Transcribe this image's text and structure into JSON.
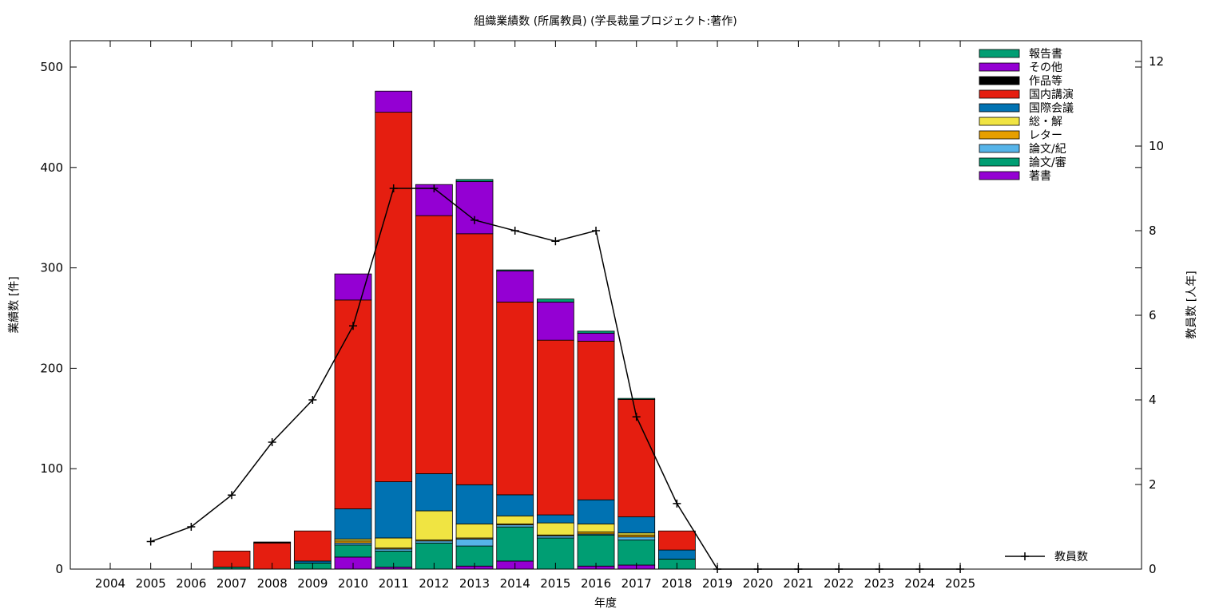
{
  "chart_data": {
    "type": "bar",
    "stacked": true,
    "title": "組織業績数 (所属教員) (学長裁量プロジェクト:著作)",
    "xlabel": "年度",
    "ylabel": "業績数 [件]",
    "y2label": "教員数 [人年]",
    "ylim": [
      0,
      525
    ],
    "y2lim": [
      0,
      12.5
    ],
    "yticks": [
      0,
      100,
      200,
      300,
      400,
      500
    ],
    "y2ticks": [
      0,
      2,
      4,
      6,
      8,
      10,
      12
    ],
    "grid": false,
    "legend_position": "top-right",
    "categories": [
      "2004",
      "2005",
      "2006",
      "2007",
      "2008",
      "2009",
      "2010",
      "2011",
      "2012",
      "2013",
      "2014",
      "2015",
      "2016",
      "2017",
      "2018",
      "2019",
      "2020",
      "2021",
      "2022",
      "2023",
      "2024",
      "2025"
    ],
    "series": [
      {
        "name": "著書",
        "color": "#9400d3",
        "values": [
          0,
          0,
          0,
          0,
          0,
          0,
          12,
          2,
          0,
          3,
          8,
          0,
          3,
          4,
          0,
          0,
          0,
          0,
          0,
          0,
          0,
          0
        ]
      },
      {
        "name": "論文/審",
        "color": "#009e73",
        "values": [
          0,
          0,
          0,
          2,
          0,
          6,
          12,
          16,
          26,
          20,
          34,
          31,
          31,
          25,
          10,
          0,
          0,
          0,
          0,
          0,
          0,
          0
        ]
      },
      {
        "name": "論文/紀",
        "color": "#56b4e9",
        "values": [
          0,
          0,
          0,
          0,
          0,
          0,
          2,
          2,
          2,
          7,
          2,
          2,
          1,
          3,
          0,
          0,
          0,
          0,
          0,
          0,
          0,
          0
        ]
      },
      {
        "name": "レター",
        "color": "#e69f00",
        "values": [
          0,
          0,
          0,
          0,
          0,
          0,
          2,
          1,
          1,
          1,
          1,
          1,
          2,
          2,
          0,
          0,
          0,
          0,
          0,
          0,
          0,
          0
        ]
      },
      {
        "name": "総・解",
        "color": "#f0e442",
        "values": [
          0,
          0,
          0,
          0,
          0,
          0,
          2,
          10,
          29,
          14,
          8,
          12,
          8,
          2,
          0,
          0,
          0,
          0,
          0,
          0,
          0,
          0
        ]
      },
      {
        "name": "国際会議",
        "color": "#0072b2",
        "values": [
          0,
          0,
          0,
          0,
          0,
          2,
          30,
          56,
          37,
          39,
          21,
          8,
          24,
          16,
          9,
          0,
          0,
          0,
          0,
          0,
          0,
          0
        ]
      },
      {
        "name": "国内講演",
        "color": "#e51e10",
        "values": [
          0,
          0,
          0,
          16,
          26,
          30,
          208,
          368,
          257,
          250,
          192,
          174,
          158,
          117,
          19,
          0,
          0,
          0,
          0,
          0,
          0,
          0
        ]
      },
      {
        "name": "作品等",
        "color": "#000000",
        "values": [
          0,
          0,
          0,
          0,
          1,
          0,
          0,
          0,
          0,
          0,
          0,
          0,
          0,
          0,
          0,
          0,
          0,
          0,
          0,
          0,
          0,
          0
        ]
      },
      {
        "name": "その他",
        "color": "#9400d3",
        "values": [
          0,
          0,
          0,
          0,
          0,
          0,
          26,
          21,
          31,
          52,
          31,
          38,
          8,
          0,
          0,
          0,
          0,
          0,
          0,
          0,
          0,
          0
        ]
      },
      {
        "name": "報告書",
        "color": "#009e73",
        "values": [
          0,
          0,
          0,
          0,
          0,
          0,
          0,
          0,
          0,
          2,
          1,
          3,
          2,
          1,
          0,
          0,
          0,
          0,
          0,
          0,
          0,
          0
        ]
      }
    ],
    "line_series": {
      "name": "教員数",
      "color": "#000000",
      "axis": "y2",
      "x": [
        "2005",
        "2006",
        "2007",
        "2008",
        "2009",
        "2010",
        "2011",
        "2012",
        "2013",
        "2014",
        "2015",
        "2016",
        "2017",
        "2018",
        "2019",
        "2020",
        "2021",
        "2022",
        "2023",
        "2024",
        "2025"
      ],
      "values": [
        0.65,
        1.0,
        1.75,
        3.0,
        4.0,
        5.75,
        9.0,
        9.0,
        8.25,
        8.0,
        7.75,
        8.0,
        3.6,
        1.55,
        0,
        0,
        0,
        0,
        0,
        0,
        0
      ]
    }
  }
}
